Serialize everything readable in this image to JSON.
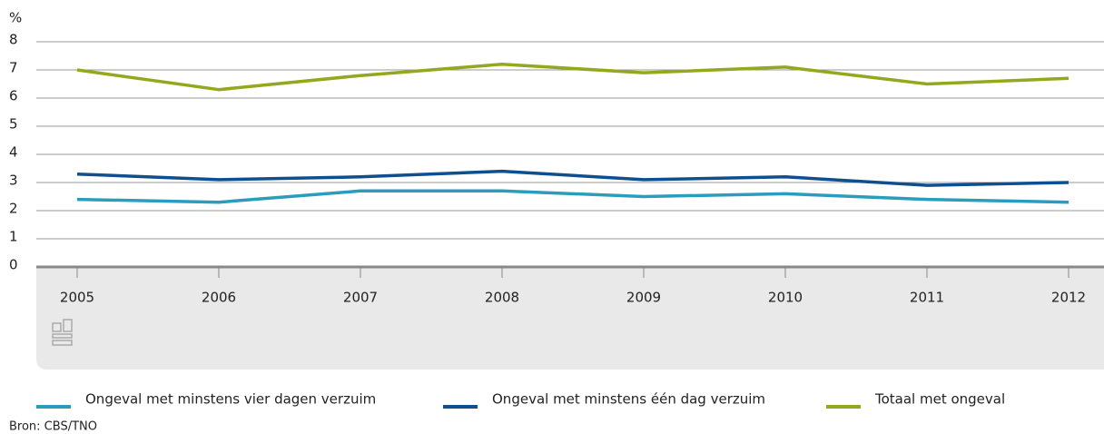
{
  "chart_data": {
    "type": "line",
    "y_label": "%",
    "categories": [
      "2005",
      "2006",
      "2007",
      "2008",
      "2009",
      "2010",
      "2011",
      "2012"
    ],
    "series": [
      {
        "name": "Ongeval met minstens vier dagen verzuim",
        "color": "#2a9dbd",
        "values": [
          2.4,
          2.3,
          2.7,
          2.7,
          2.5,
          2.6,
          2.4,
          2.3
        ]
      },
      {
        "name": "Ongeval met minstens één dag verzuim",
        "color": "#0f4f8f",
        "values": [
          3.3,
          3.1,
          3.2,
          3.4,
          3.1,
          3.2,
          2.9,
          3.0
        ]
      },
      {
        "name": "Totaal met ongeval",
        "color": "#93a81c",
        "values": [
          7.0,
          6.3,
          6.8,
          7.2,
          6.9,
          7.1,
          6.5,
          6.7
        ]
      }
    ],
    "ylim": [
      0,
      8
    ],
    "yticks": [
      0,
      1,
      2,
      3,
      4,
      5,
      6,
      7,
      8
    ],
    "grid": true,
    "source": "Bron: CBS/TNO"
  }
}
